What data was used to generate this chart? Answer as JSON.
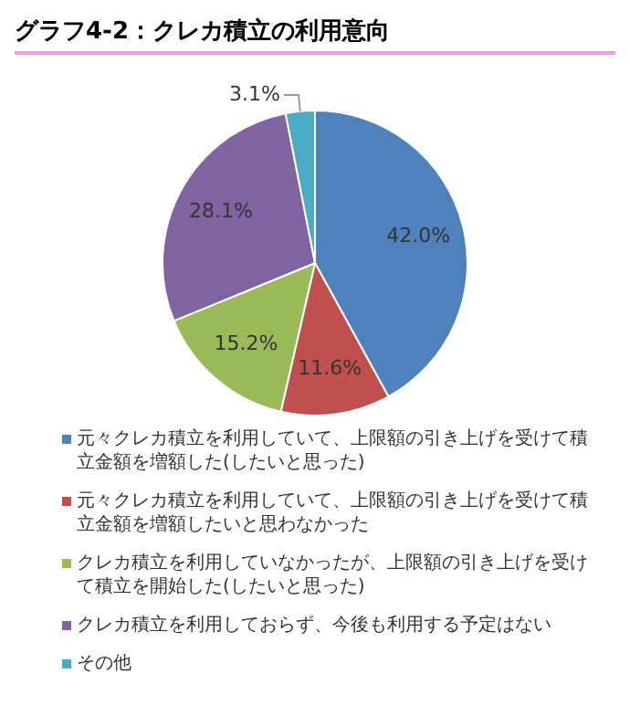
{
  "chart_data": {
    "type": "pie",
    "title": "グラフ4-2：クレカ積立の利用意向",
    "categories": [
      "元々クレカ積立を利用していて、上限額の引き上げを受けて積立金額を増額した(したいと思った)",
      "元々クレカ積立を利用していて、上限額の引き上げを受けて積立金額を増額したいと思わなかった",
      "クレカ積立を利用していなかったが、上限額の引き上げを受けて積立を開始した(したいと思った)",
      "クレカ積立を利用しておらず、今後も利用する予定はない",
      "その他"
    ],
    "values": [
      42.0,
      11.6,
      15.2,
      28.1,
      3.1
    ],
    "value_labels": [
      "42.0%",
      "11.6%",
      "15.2%",
      "28.1%",
      "3.1%"
    ],
    "colors": [
      "#4f81bd",
      "#c0504d",
      "#9bbb59",
      "#8064a2",
      "#4bacc6"
    ],
    "legend": "bottom"
  }
}
